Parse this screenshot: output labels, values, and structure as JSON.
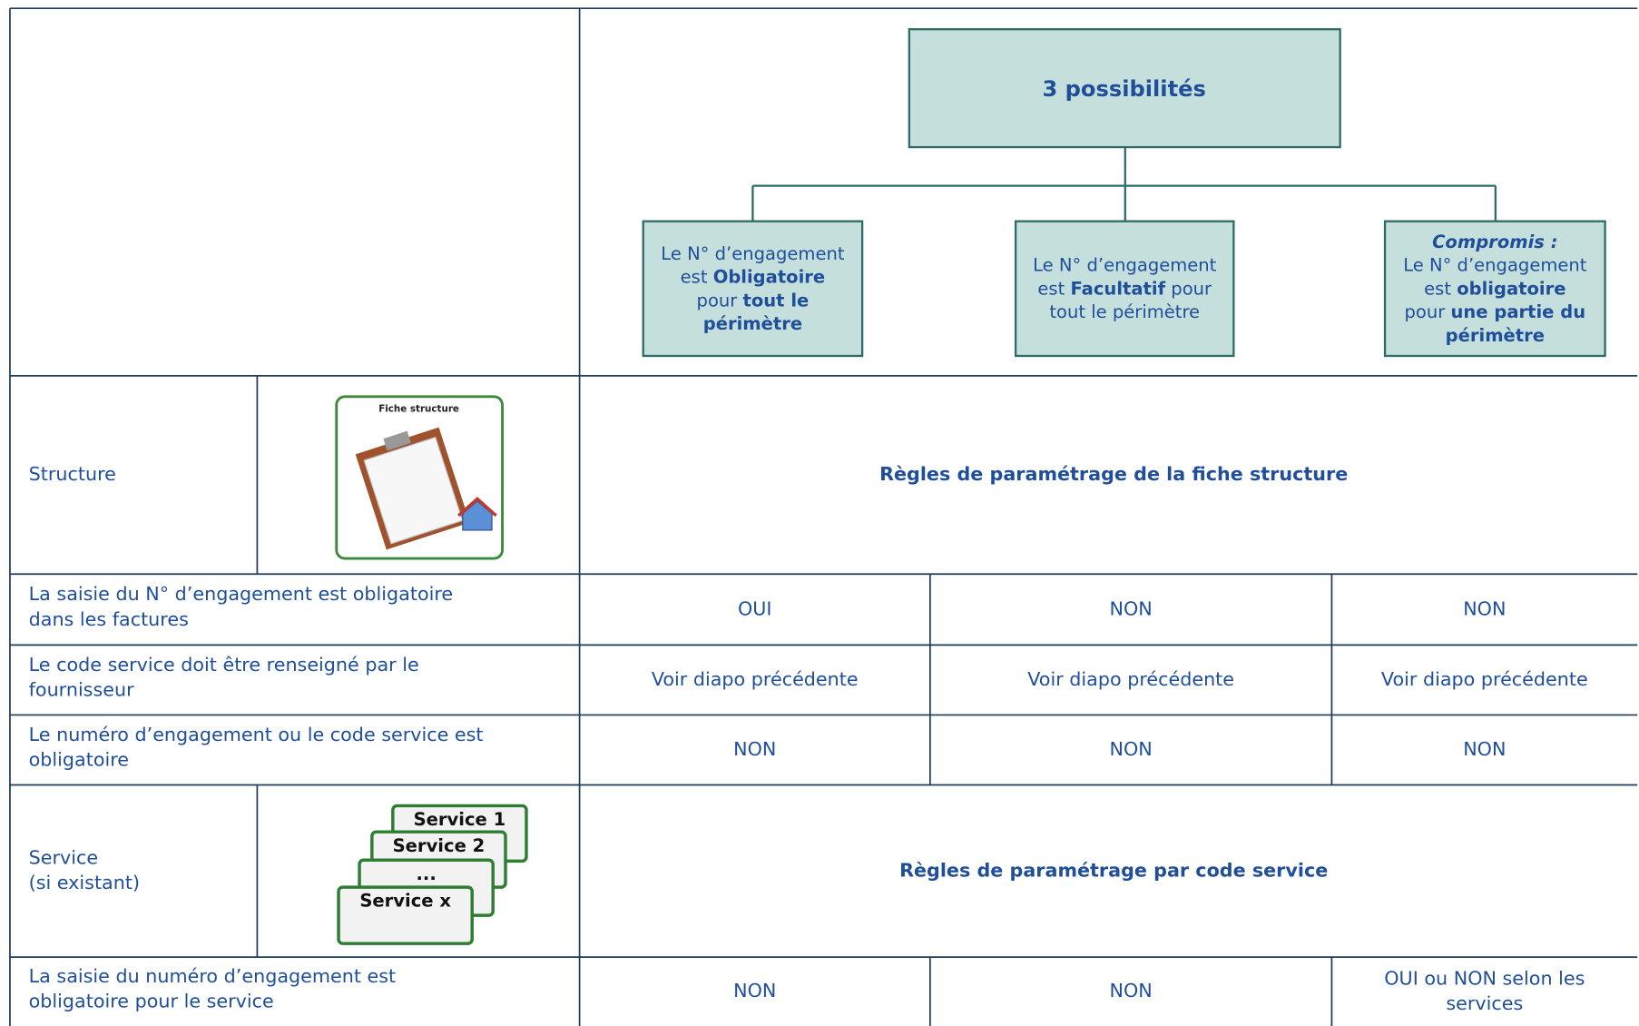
{
  "diagram": {
    "title": "3 possibilités",
    "options": [
      {
        "lines": [
          [
            {
              "text": "Le N° d’engagement"
            }
          ],
          [
            {
              "text": "est "
            },
            {
              "text": "Obligatoire",
              "style": "bold"
            }
          ],
          [
            {
              "text": "pour "
            },
            {
              "text": "tout le",
              "style": "bold"
            }
          ],
          [
            {
              "text": "périmètre",
              "style": "bold"
            }
          ]
        ]
      },
      {
        "lines": [
          [
            {
              "text": "Le N° d’engagement"
            }
          ],
          [
            {
              "text": "est "
            },
            {
              "text": "Facultatif",
              "style": "bold"
            },
            {
              "text": " pour"
            }
          ],
          [
            {
              "text": "tout le périmètre"
            }
          ]
        ]
      },
      {
        "lines": [
          [
            {
              "text": "Compromis :",
              "style": "bold-italic"
            }
          ],
          [
            {
              "text": "Le N° d’engagement"
            }
          ],
          [
            {
              "text": "est "
            },
            {
              "text": "obligatoire",
              "style": "bold"
            }
          ],
          [
            {
              "text": "pour "
            },
            {
              "text": "une partie du",
              "style": "bold"
            }
          ],
          [
            {
              "text": "périmètre",
              "style": "bold"
            }
          ]
        ]
      }
    ]
  },
  "table": {
    "rows": [
      {
        "kind": "section",
        "label": [
          "Structure"
        ],
        "icon_labels": [
          "Fiche structure"
        ],
        "rule": "Règles de paramétrage de la fiche structure"
      },
      {
        "kind": "data",
        "label": [
          "La saisie du N° d’engagement est obligatoire",
          "dans les factures"
        ],
        "cells": [
          [
            "OUI"
          ],
          [
            "NON"
          ],
          [
            "NON"
          ]
        ]
      },
      {
        "kind": "data",
        "label": [
          "Le code service doit être renseigné par le",
          "fournisseur"
        ],
        "cells": [
          [
            "Voir diapo précédente"
          ],
          [
            "Voir diapo précédente"
          ],
          [
            "Voir diapo précédente"
          ]
        ]
      },
      {
        "kind": "data",
        "label": [
          "Le numéro d’engagement ou le code service est",
          "obligatoire"
        ],
        "cells": [
          [
            "NON"
          ],
          [
            "NON"
          ],
          [
            "NON"
          ]
        ]
      },
      {
        "kind": "section",
        "label": [
          "Service",
          "(si existant)"
        ],
        "icon_labels": [
          "Service 1",
          "Service 2",
          "...",
          "Service x"
        ],
        "rule": "Règles de paramétrage par code service"
      },
      {
        "kind": "data",
        "label": [
          "La saisie du numéro d’engagement est",
          "obligatoire pour le service"
        ],
        "cells": [
          [
            "NON"
          ],
          [
            "NON"
          ],
          [
            "OUI ou NON selon les",
            "services"
          ]
        ]
      }
    ]
  }
}
